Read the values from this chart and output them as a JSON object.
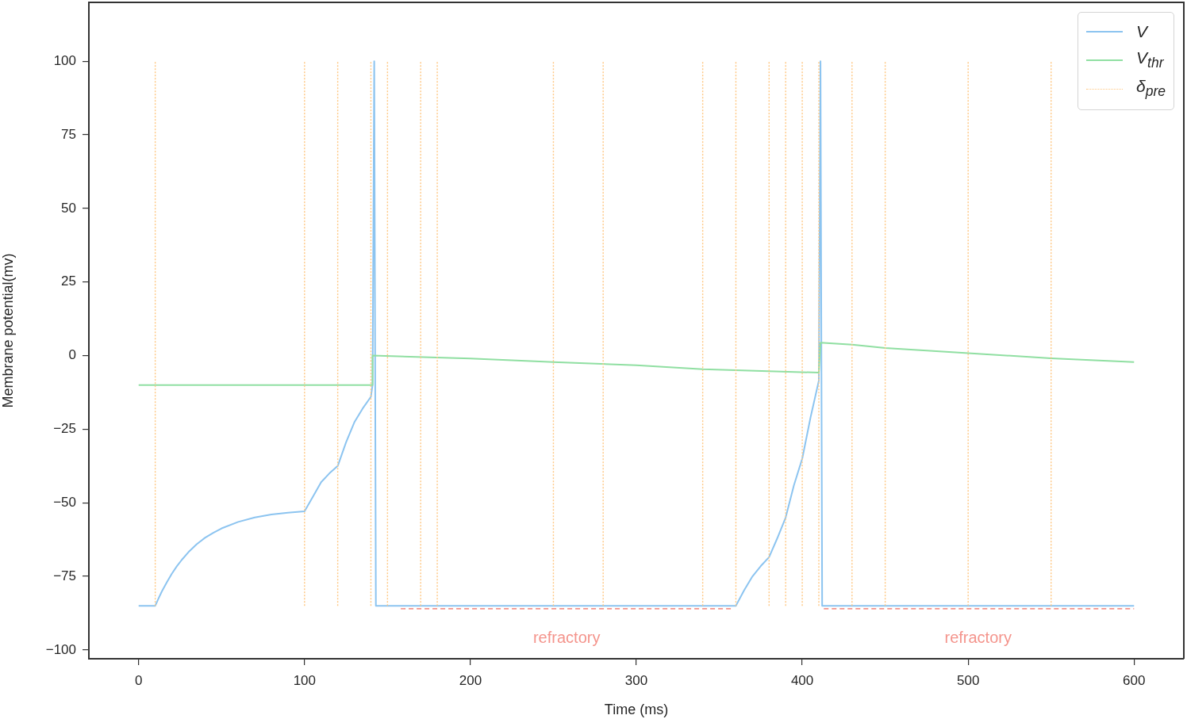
{
  "chart_data": {
    "type": "line",
    "xlabel": "Time (ms)",
    "ylabel": "Membrane potential(mv)",
    "xlim": [
      -30,
      630
    ],
    "ylim": [
      -103,
      120
    ],
    "xticks": [
      0,
      100,
      200,
      300,
      400,
      500,
      600
    ],
    "yticks": [
      {
        "value": -100,
        "label": "−100"
      },
      {
        "value": -75,
        "label": "−75"
      },
      {
        "value": -50,
        "label": "−50"
      },
      {
        "value": -25,
        "label": "−25"
      },
      0,
      25,
      50,
      75,
      100
    ],
    "legend": "top right",
    "series": [
      {
        "name": "V",
        "color": "#8cc4f0",
        "line_style": "solid",
        "x": [
          0,
          10,
          12,
          14,
          17,
          20,
          23,
          26,
          30,
          35,
          40,
          45,
          50,
          60,
          70,
          80,
          90,
          100,
          105,
          110,
          115,
          120,
          125,
          130,
          135,
          140,
          141,
          142,
          143,
          360,
          365,
          370,
          375,
          380,
          385,
          390,
          395,
          400,
          405,
          410,
          411,
          412,
          600
        ],
        "values": [
          -85,
          -85,
          -82.5,
          -80.1,
          -77,
          -74.1,
          -71.6,
          -69.4,
          -66.8,
          -64.1,
          -61.9,
          -60.2,
          -58.7,
          -56.5,
          -55,
          -54,
          -53.4,
          -52.9,
          -48,
          -43,
          -40,
          -37.5,
          -29.5,
          -22.7,
          -18,
          -14,
          -10,
          100,
          -85,
          -85,
          -79.7,
          -75,
          -71.5,
          -68.5,
          -62,
          -55,
          -44,
          -35,
          -21,
          -8.5,
          100,
          -85,
          -85
        ]
      },
      {
        "name": "V$_{thr}$",
        "color": "#90dfa2",
        "line_style": "solid",
        "x": [
          0,
          141,
          141,
          200,
          250,
          300,
          340,
          410,
          411,
          430,
          450,
          500,
          550,
          600
        ],
        "values": [
          -10,
          -10,
          0,
          -1,
          -2.2,
          -3.3,
          -4.6,
          -5.8,
          4.4,
          3.7,
          2.6,
          0.8,
          -0.9,
          -2.2
        ]
      },
      {
        "name": "δ$_{pre}$",
        "color": "#ffc680",
        "line_style": "dotted",
        "x": [
          10,
          10
        ],
        "values": [
          -85,
          100
        ]
      },
      {
        "color": "#ffc680",
        "line_style": "dotted",
        "x": [
          100,
          100
        ],
        "values": [
          -85,
          100
        ]
      },
      {
        "color": "#ffc680",
        "line_style": "dotted",
        "x": [
          120,
          120
        ],
        "values": [
          -85,
          100
        ]
      },
      {
        "color": "#ffc680",
        "line_style": "dotted",
        "x": [
          140,
          140
        ],
        "values": [
          -85,
          100
        ]
      },
      {
        "color": "#ffc680",
        "line_style": "dotted",
        "x": [
          150,
          150
        ],
        "values": [
          -85,
          100
        ]
      },
      {
        "color": "#ffc680",
        "line_style": "dotted",
        "x": [
          170,
          170
        ],
        "values": [
          -85,
          100
        ]
      },
      {
        "color": "#ffc680",
        "line_style": "dotted",
        "x": [
          180,
          180
        ],
        "values": [
          -85,
          100
        ]
      },
      {
        "color": "#ffc680",
        "line_style": "dotted",
        "x": [
          250,
          250
        ],
        "values": [
          -85,
          100
        ]
      },
      {
        "color": "#ffc680",
        "line_style": "dotted",
        "x": [
          280,
          280
        ],
        "values": [
          -85,
          100
        ]
      },
      {
        "color": "#ffc680",
        "line_style": "dotted",
        "x": [
          340,
          340
        ],
        "values": [
          -85,
          100
        ]
      },
      {
        "color": "#ffc680",
        "line_style": "dotted",
        "x": [
          360,
          360
        ],
        "values": [
          -85,
          100
        ]
      },
      {
        "color": "#ffc680",
        "line_style": "dotted",
        "x": [
          380,
          380
        ],
        "values": [
          -85,
          100
        ]
      },
      {
        "color": "#ffc680",
        "line_style": "dotted",
        "x": [
          390,
          390
        ],
        "values": [
          -85,
          100
        ]
      },
      {
        "color": "#ffc680",
        "line_style": "dotted",
        "x": [
          400,
          400
        ],
        "values": [
          -85,
          100
        ]
      },
      {
        "color": "#ffc680",
        "line_style": "dotted",
        "x": [
          410,
          410
        ],
        "values": [
          -85,
          100
        ]
      },
      {
        "color": "#ffc680",
        "line_style": "dotted",
        "x": [
          430,
          430
        ],
        "values": [
          -85,
          100
        ]
      },
      {
        "color": "#ffc680",
        "line_style": "dotted",
        "x": [
          450,
          450
        ],
        "values": [
          -85,
          100
        ]
      },
      {
        "color": "#ffc680",
        "line_style": "dotted",
        "x": [
          500,
          500
        ],
        "values": [
          -85,
          100
        ]
      },
      {
        "color": "#ffc680",
        "line_style": "dotted",
        "x": [
          550,
          550
        ],
        "values": [
          -85,
          100
        ]
      },
      {
        "color": "#f4948c",
        "line_style": "dashed",
        "x": [
          158,
          358
        ],
        "values": [
          -86,
          -86
        ]
      },
      {
        "color": "#f4948c",
        "line_style": "dashed",
        "x": [
          413,
          600
        ],
        "values": [
          -86,
          -86
        ]
      }
    ],
    "annotations": [
      {
        "text": "refractory",
        "x": 258,
        "y": -86
      },
      {
        "text": "refractory",
        "x": 506,
        "y": -86
      }
    ]
  }
}
